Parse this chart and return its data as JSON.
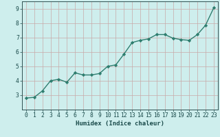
{
  "x": [
    0,
    1,
    2,
    3,
    4,
    5,
    6,
    7,
    8,
    9,
    10,
    11,
    12,
    13,
    14,
    15,
    16,
    17,
    18,
    19,
    20,
    21,
    22,
    23
  ],
  "y": [
    2.8,
    2.85,
    3.3,
    4.0,
    4.1,
    3.9,
    4.55,
    4.4,
    4.4,
    4.5,
    5.0,
    5.1,
    5.85,
    6.65,
    6.8,
    6.9,
    7.2,
    7.2,
    6.95,
    6.85,
    6.8,
    7.2,
    7.85,
    9.05
  ],
  "line_color": "#2e7d6e",
  "marker": "D",
  "marker_size": 2.2,
  "xlabel": "Humidex (Indice chaleur)",
  "ylim": [
    2.0,
    9.5
  ],
  "xlim": [
    -0.5,
    23.5
  ],
  "yticks": [
    3,
    4,
    5,
    6,
    7,
    8,
    9
  ],
  "xticks": [
    0,
    1,
    2,
    3,
    4,
    5,
    6,
    7,
    8,
    9,
    10,
    11,
    12,
    13,
    14,
    15,
    16,
    17,
    18,
    19,
    20,
    21,
    22,
    23
  ],
  "bg_color": "#ceeeed",
  "grid_color_v": "#c8a8a8",
  "grid_color_h": "#c8a8a8",
  "axis_color": "#2e5050",
  "label_color": "#1a4a4a",
  "font_size_label": 6.5,
  "font_size_tick": 5.8,
  "line_width": 1.0
}
